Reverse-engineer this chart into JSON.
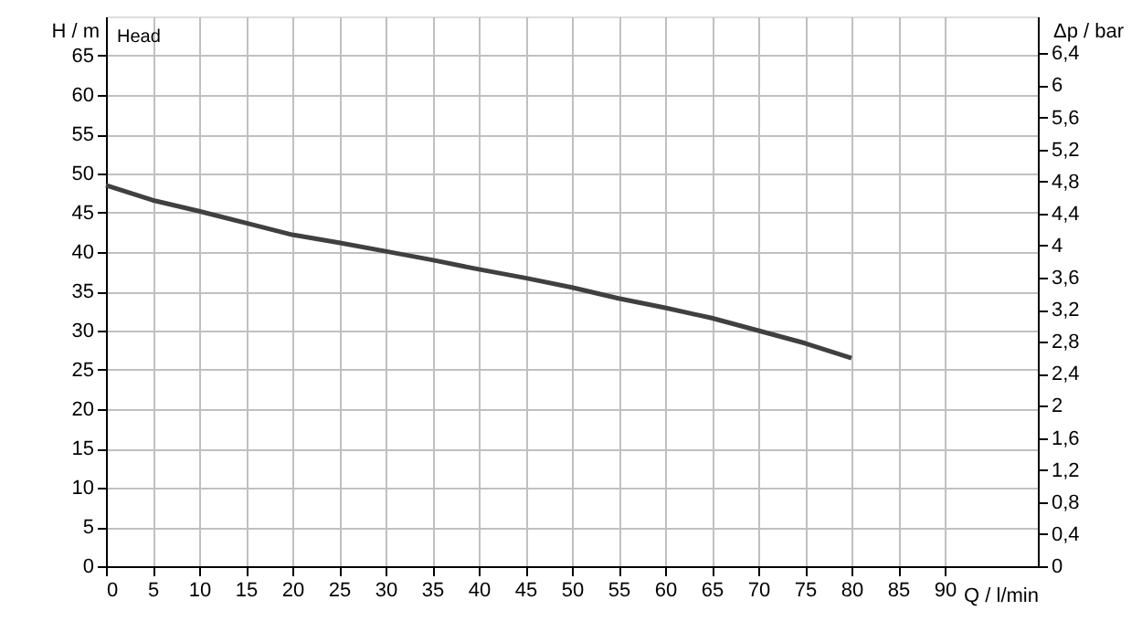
{
  "chart_data": {
    "type": "line",
    "xlabel": "Q / l/min",
    "ylabel": "H / m",
    "y2label": "Δp / bar",
    "annotations": [
      "Head"
    ],
    "x": [
      0,
      5,
      10,
      15,
      20,
      25,
      30,
      35,
      40,
      45,
      50,
      55,
      60,
      65,
      70,
      75,
      80
    ],
    "series": [
      {
        "color": "#404040",
        "values": [
          48.5,
          46.6,
          45.2,
          43.7,
          42.2,
          41.2,
          40.1,
          39.0,
          37.8,
          36.7,
          35.5,
          34.1,
          32.9,
          31.6,
          30.0,
          28.4,
          26.5
        ]
      }
    ],
    "xlim": [
      0,
      100
    ],
    "xticks": [
      0,
      5,
      10,
      15,
      20,
      25,
      30,
      35,
      40,
      45,
      50,
      55,
      60,
      65,
      70,
      75,
      80,
      85,
      90
    ],
    "ylim": [
      0,
      70
    ],
    "yticks": [
      0,
      5,
      10,
      15,
      20,
      25,
      30,
      35,
      40,
      45,
      50,
      55,
      60,
      65
    ],
    "y2lim": [
      0,
      6.86
    ],
    "y2ticks": [
      0,
      {
        "value": 0.4,
        "label": "0,4"
      },
      {
        "value": 0.8,
        "label": "0,8"
      },
      {
        "value": 1.2,
        "label": "1,2"
      },
      {
        "value": 1.6,
        "label": "1,6"
      },
      2,
      {
        "value": 2.4,
        "label": "2,4"
      },
      {
        "value": 2.8,
        "label": "2,8"
      },
      {
        "value": 3.2,
        "label": "3,2"
      },
      {
        "value": 3.6,
        "label": "3,6"
      },
      4,
      {
        "value": 4.4,
        "label": "4,4"
      },
      {
        "value": 4.8,
        "label": "4,8"
      },
      {
        "value": 5.2,
        "label": "5,2"
      },
      {
        "value": 5.6,
        "label": "5,6"
      },
      6,
      {
        "value": 6.4,
        "label": "6,4"
      }
    ],
    "grid": true,
    "marker": "none",
    "line_style": "solid"
  }
}
